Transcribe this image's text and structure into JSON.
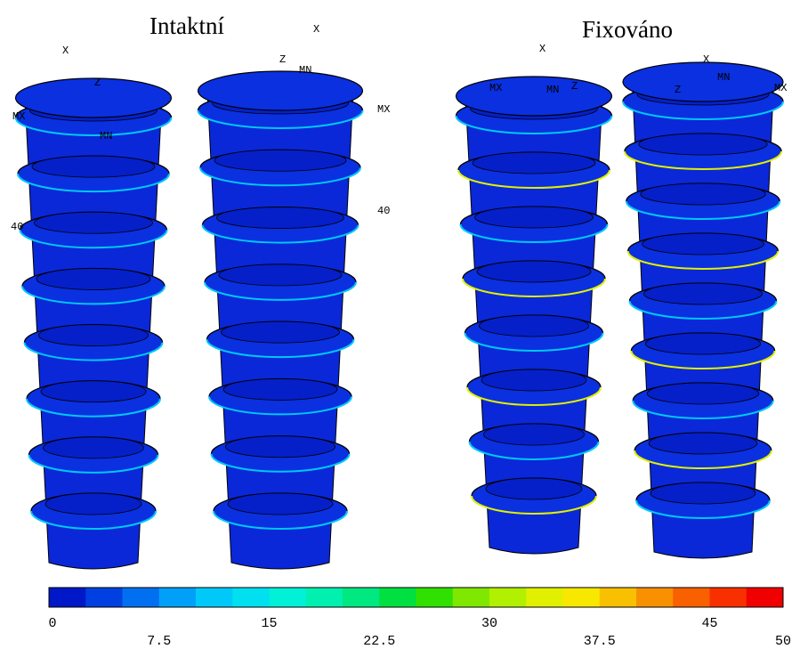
{
  "titles": [
    "Intaktní",
    "Fixováno"
  ],
  "panels": [
    {
      "labels": [
        "X",
        "Z",
        "MX",
        "MN",
        "40"
      ]
    },
    {
      "labels": [
        "X",
        "Z",
        "MN",
        "MX",
        "40"
      ]
    },
    {
      "labels": [
        "X",
        "MX",
        "MN",
        "Z"
      ]
    },
    {
      "labels": [
        "X",
        "Z",
        "MN",
        "MX"
      ]
    }
  ],
  "colorbar": {
    "range": [
      0,
      50
    ],
    "ticks": [
      0,
      7.5,
      15,
      22.5,
      30,
      37.5,
      45,
      50
    ],
    "colors": [
      "#0018c8",
      "#0040e0",
      "#0070f0",
      "#00a0f8",
      "#00c8f8",
      "#00e0f0",
      "#00f0d8",
      "#00f0b0",
      "#00e880",
      "#00e040",
      "#30e000",
      "#80e800",
      "#b0f000",
      "#e0f000",
      "#f8e800",
      "#f8c000",
      "#f89000",
      "#f86000",
      "#f83000",
      "#f00000"
    ]
  }
}
